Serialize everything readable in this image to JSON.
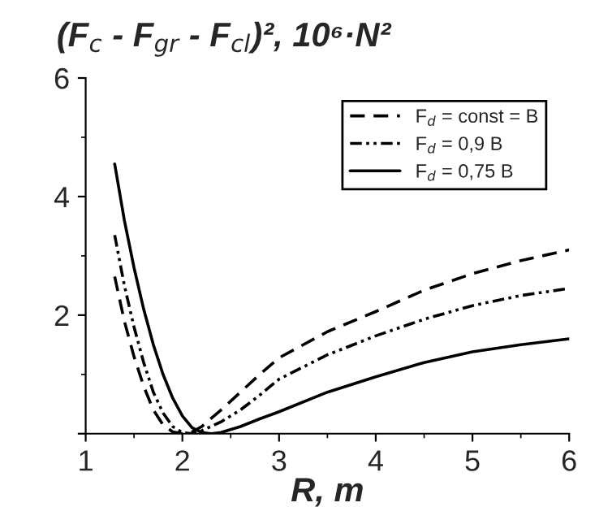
{
  "chart_data": {
    "type": "line",
    "title": "(F$_{c}$ - F$_{gr}$ - F$_{cl}$)², 10⁶·N²",
    "xlabel": "R, m",
    "xlim": [
      1,
      6
    ],
    "xticks": [
      1,
      2,
      3,
      4,
      5,
      6
    ],
    "ylim": [
      0,
      6
    ],
    "yticks": [
      {
        "value": 0,
        "label": null
      },
      2,
      4,
      6
    ],
    "grid": false,
    "legend": "top right",
    "series": [
      {
        "name": "F$_{d}$ = const = B",
        "color": "#000000",
        "line_style": "dashed",
        "x": [
          1.3,
          1.4,
          1.5,
          1.6,
          1.7,
          1.8,
          1.9,
          2.0,
          2.1,
          2.2,
          2.4,
          2.6,
          2.8,
          3.0,
          3.5,
          4.0,
          4.5,
          5.0,
          5.5,
          6.0
        ],
        "values": [
          2.65,
          1.9,
          1.3,
          0.8,
          0.4,
          0.15,
          0.03,
          0.0,
          0.03,
          0.12,
          0.4,
          0.7,
          1.0,
          1.28,
          1.72,
          2.06,
          2.42,
          2.7,
          2.92,
          3.1
        ]
      },
      {
        "name": "F$_{d}$ = 0,9 B",
        "color": "#000000",
        "line_style": "dashdot",
        "x": [
          1.3,
          1.4,
          1.5,
          1.6,
          1.7,
          1.8,
          1.9,
          2.0,
          2.1,
          2.2,
          2.4,
          2.6,
          2.8,
          3.0,
          3.5,
          4.0,
          4.5,
          5.0,
          5.5,
          6.0
        ],
        "values": [
          3.35,
          2.5,
          1.8,
          1.2,
          0.7,
          0.35,
          0.12,
          0.02,
          0.0,
          0.05,
          0.2,
          0.4,
          0.65,
          0.92,
          1.33,
          1.65,
          1.93,
          2.16,
          2.33,
          2.45
        ]
      },
      {
        "name": "F$_{d}$ = 0,75 B",
        "color": "#000000",
        "line_style": "solid",
        "x": [
          1.3,
          1.4,
          1.5,
          1.6,
          1.7,
          1.8,
          1.9,
          2.0,
          2.1,
          2.2,
          2.3,
          2.4,
          2.6,
          2.8,
          3.0,
          3.5,
          4.0,
          4.5,
          5.0,
          5.5,
          6.0
        ],
        "values": [
          4.55,
          3.6,
          2.8,
          2.1,
          1.5,
          1.0,
          0.6,
          0.3,
          0.1,
          0.02,
          0.0,
          0.02,
          0.12,
          0.25,
          0.37,
          0.7,
          0.96,
          1.2,
          1.38,
          1.5,
          1.6
        ]
      }
    ]
  }
}
